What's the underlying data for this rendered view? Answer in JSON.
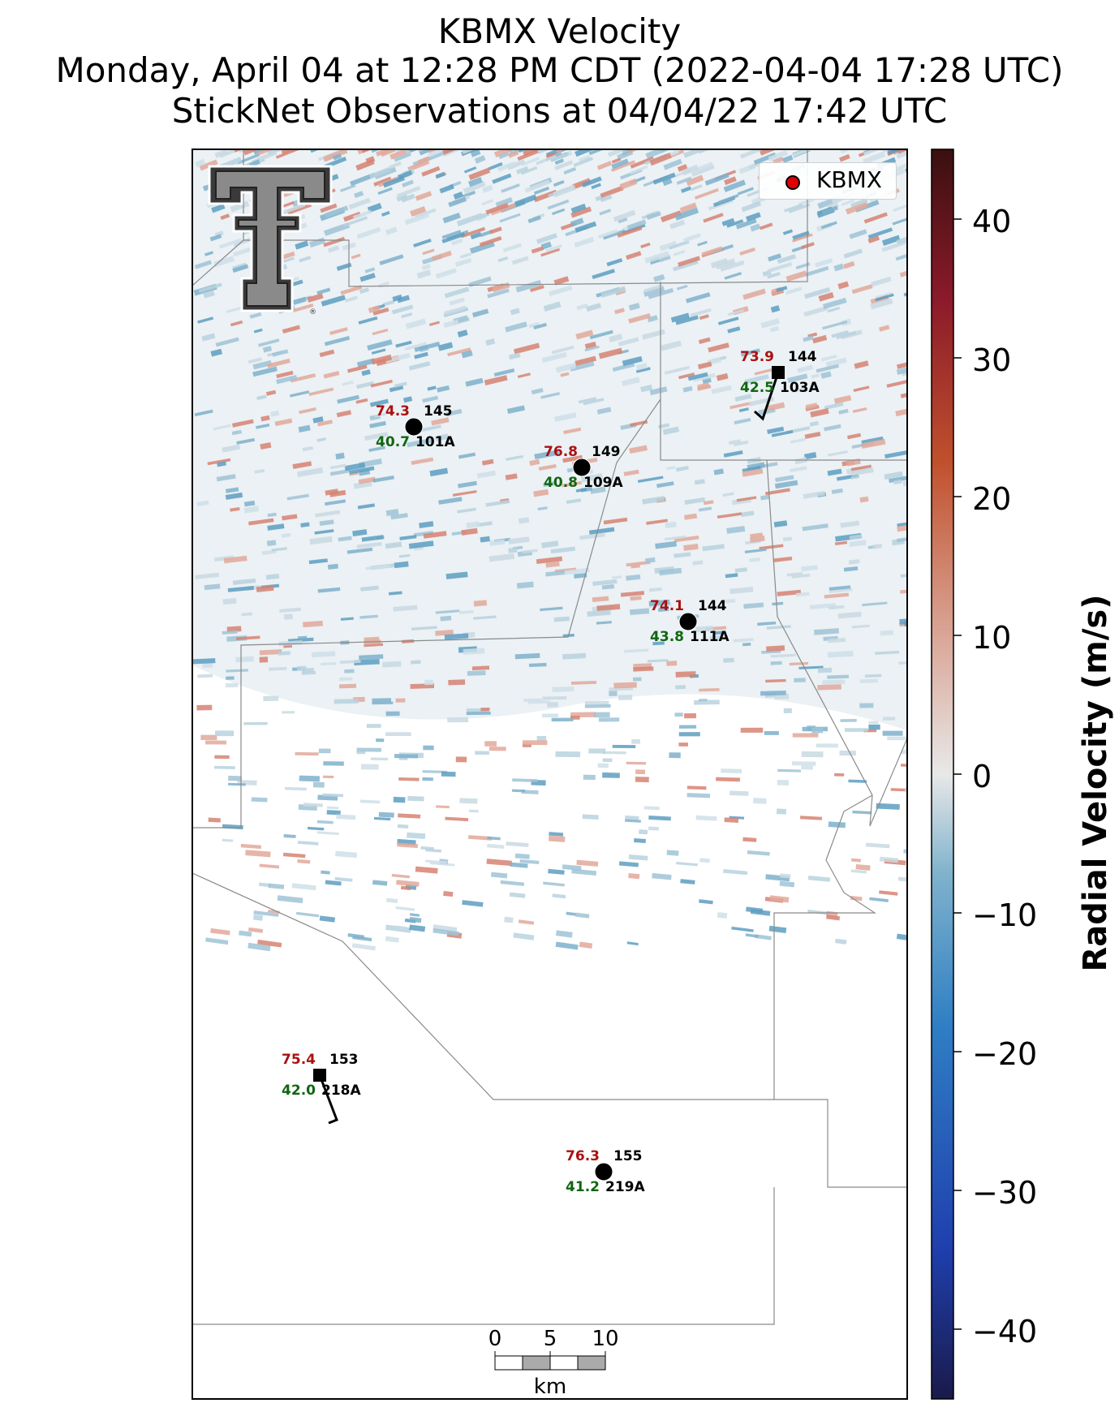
{
  "header": {
    "line1": "KBMX Velocity",
    "line2": "Monday, April 04 at 12:28 PM CDT (2022-04-04 17:28 UTC)",
    "line3": "StickNet Observations at 04/04/22 17:42 UTC"
  },
  "legend": {
    "label": "KBMX",
    "marker_color": "#e00000"
  },
  "colorbar": {
    "label": "Radial Velocity (m/s)",
    "ticks": [
      "40",
      "30",
      "20",
      "10",
      "0",
      "−10",
      "−20",
      "−30",
      "−40"
    ],
    "range": [
      -45,
      45
    ],
    "colors": [
      "#1a1a4a",
      "#1f3fae",
      "#2f7fc4",
      "#7fb2cc",
      "#e8e8e8",
      "#d8a090",
      "#c0502c",
      "#8b1a2a",
      "#3a1010"
    ]
  },
  "scale_bar": {
    "ticks": [
      "0",
      "5",
      "10"
    ],
    "unit": "km"
  },
  "logo": {
    "name": "Texas Tech Double T logo",
    "mark": "®"
  },
  "colors": {
    "temperature": "#aa1111",
    "dewpoint": "#116611",
    "marker": "#000000"
  },
  "stations": [
    {
      "id": "101A",
      "temp": "74.3",
      "dew": "40.7",
      "dir": "145",
      "marker": "circle"
    },
    {
      "id": "109A",
      "temp": "76.8",
      "dew": "40.8",
      "dir": "149",
      "marker": "circle"
    },
    {
      "id": "103A",
      "temp": "73.9",
      "dew": "42.5",
      "dir": "144",
      "marker": "square"
    },
    {
      "id": "111A",
      "temp": "74.1",
      "dew": "43.8",
      "dir": "144",
      "marker": "circle"
    },
    {
      "id": "218A",
      "temp": "75.4",
      "dew": "42.0",
      "dir": "153",
      "marker": "square"
    },
    {
      "id": "219A",
      "temp": "76.3",
      "dew": "41.2",
      "dir": "155",
      "marker": "circle"
    }
  ]
}
